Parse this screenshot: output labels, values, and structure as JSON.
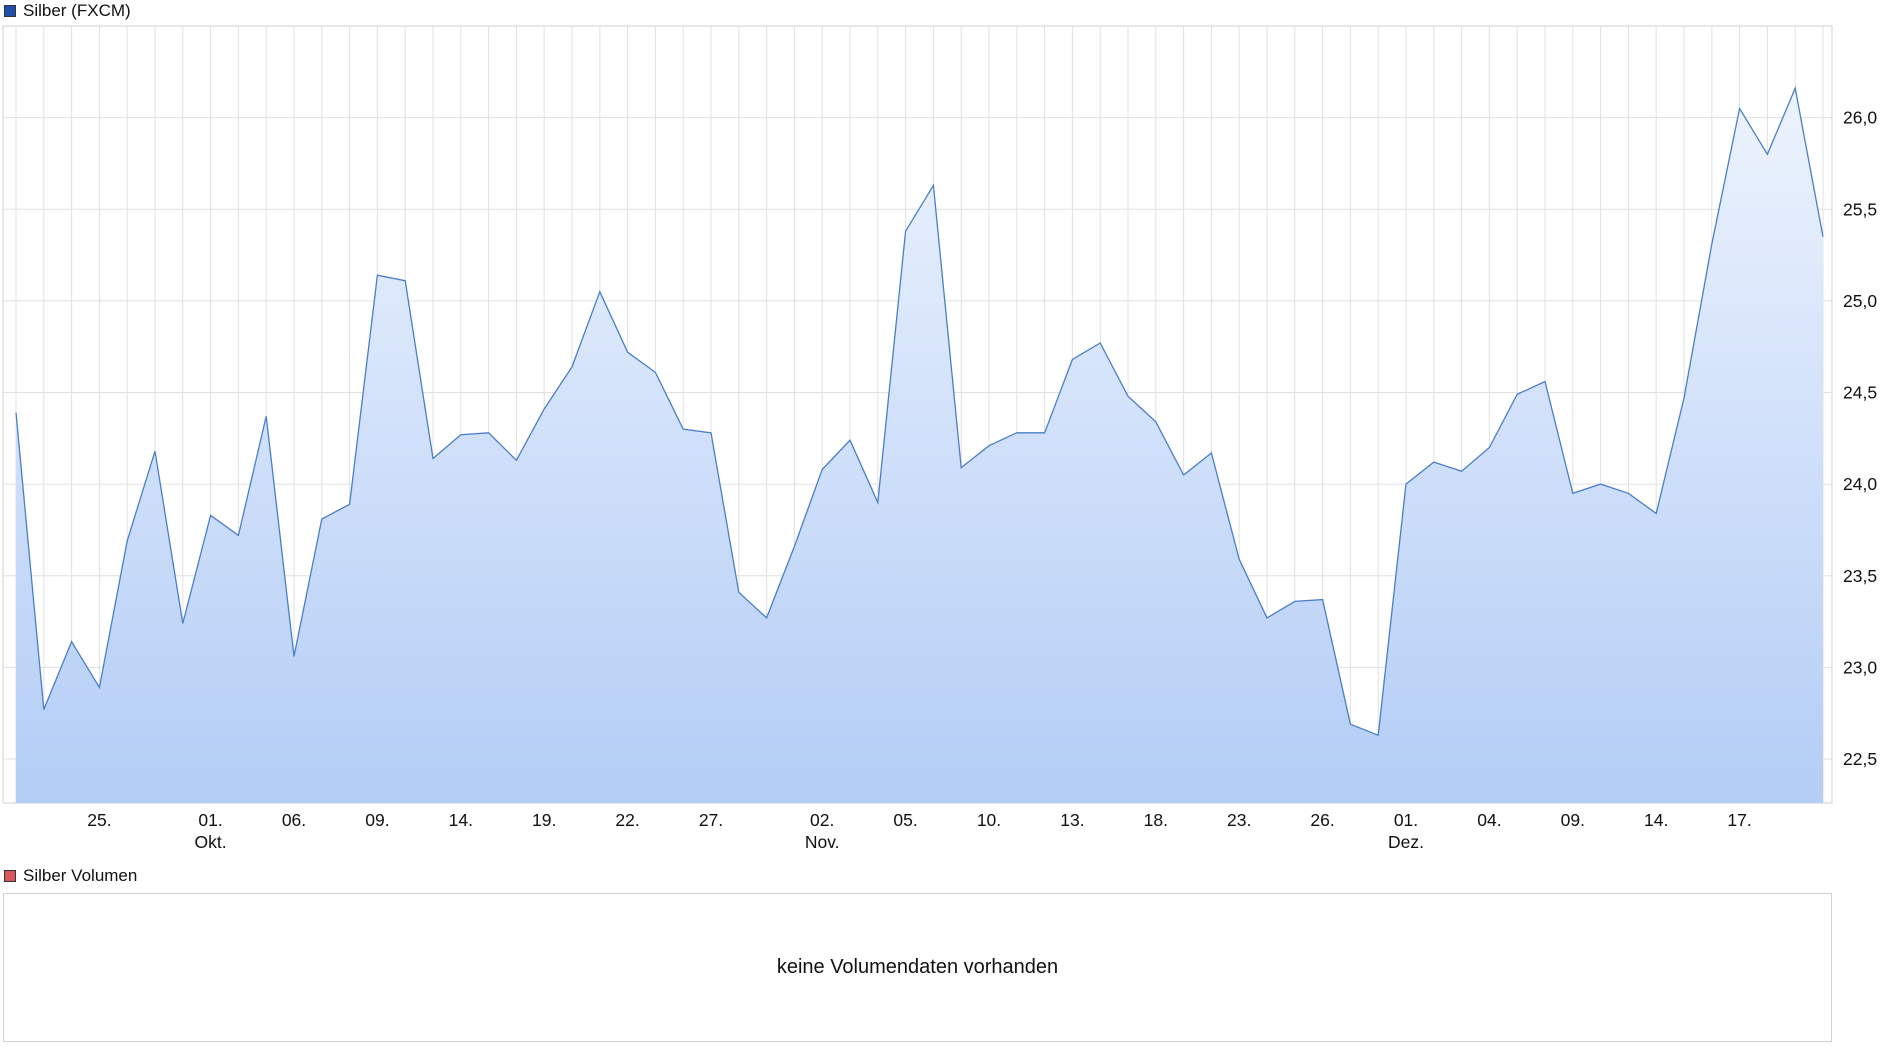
{
  "price_legend": {
    "label": "Silber (FXCM)",
    "color": "#1f4fa8"
  },
  "volume_legend": {
    "label": "Silber Volumen",
    "color": "#d9585b"
  },
  "volume_empty_text": "keine Volumendaten vorhanden",
  "colors": {
    "line": "#4a7ec7",
    "fill_top": "#edf3fd",
    "fill_bottom": "#b3cdf6",
    "grid": "#e0e0e0"
  },
  "chart_data": {
    "type": "area",
    "title": "Silber (FXCM)",
    "xlabel": "",
    "ylabel": "",
    "ylim": [
      22.26,
      26.5
    ],
    "grid": true,
    "legend": "top-left",
    "y_ticks": [
      22.5,
      23.0,
      23.5,
      24.0,
      24.5,
      25.0,
      25.5,
      26.0
    ],
    "y_tick_labels": [
      "22,5",
      "23,0",
      "23,5",
      "24,0",
      "24,5",
      "25,0",
      "25,5",
      "26,0"
    ],
    "x_ticks": [
      {
        "index": 3,
        "label": "25.",
        "sublabel": ""
      },
      {
        "index": 7,
        "label": "01.",
        "sublabel": "Okt."
      },
      {
        "index": 10,
        "label": "06.",
        "sublabel": ""
      },
      {
        "index": 13,
        "label": "09.",
        "sublabel": ""
      },
      {
        "index": 16,
        "label": "14.",
        "sublabel": ""
      },
      {
        "index": 19,
        "label": "19.",
        "sublabel": ""
      },
      {
        "index": 22,
        "label": "22.",
        "sublabel": ""
      },
      {
        "index": 25,
        "label": "27.",
        "sublabel": ""
      },
      {
        "index": 29,
        "label": "02.",
        "sublabel": "Nov."
      },
      {
        "index": 32,
        "label": "05.",
        "sublabel": ""
      },
      {
        "index": 35,
        "label": "10.",
        "sublabel": ""
      },
      {
        "index": 38,
        "label": "13.",
        "sublabel": ""
      },
      {
        "index": 41,
        "label": "18.",
        "sublabel": ""
      },
      {
        "index": 44,
        "label": "23.",
        "sublabel": ""
      },
      {
        "index": 47,
        "label": "26.",
        "sublabel": ""
      },
      {
        "index": 50,
        "label": "01.",
        "sublabel": "Dez."
      },
      {
        "index": 53,
        "label": "04.",
        "sublabel": ""
      },
      {
        "index": 56,
        "label": "09.",
        "sublabel": ""
      },
      {
        "index": 59,
        "label": "14.",
        "sublabel": ""
      },
      {
        "index": 62,
        "label": "17.",
        "sublabel": ""
      }
    ],
    "series": [
      {
        "values": [
          24.39,
          22.77,
          23.14,
          22.89,
          23.69,
          24.18,
          23.24,
          23.83,
          23.72,
          24.37,
          23.06,
          23.81,
          23.89,
          25.14,
          25.11,
          24.14,
          24.27,
          24.28,
          24.13,
          24.41,
          24.64,
          25.05,
          24.72,
          24.61,
          24.3,
          24.28,
          23.41,
          23.27,
          23.66,
          24.08,
          24.24,
          23.9,
          25.38,
          25.63,
          24.09,
          24.21,
          24.28,
          24.28,
          24.68,
          24.77,
          24.48,
          24.34,
          24.05,
          24.17,
          23.59,
          23.27,
          23.36,
          23.37,
          22.69,
          22.63,
          24.0,
          24.12,
          24.07,
          24.2,
          24.49,
          24.56,
          23.95,
          24.0,
          23.95,
          23.84,
          24.47,
          25.31,
          26.05,
          25.8,
          26.16,
          25.35
        ]
      }
    ]
  }
}
